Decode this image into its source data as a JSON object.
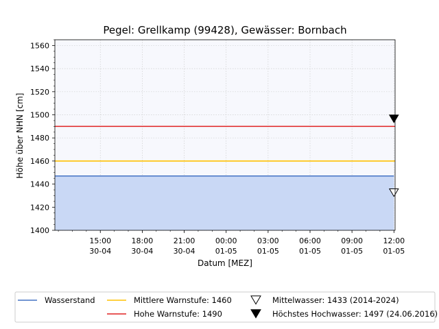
{
  "chart_data": {
    "type": "area",
    "title": "Pegel:  Grellkamp (99428), Gewässer:  Bornbach",
    "xlabel": "Datum [MEZ]",
    "ylabel": "Höhe über NHN [cm]",
    "ylim": [
      1400,
      1565
    ],
    "yticks": [
      1400,
      1420,
      1440,
      1460,
      1480,
      1500,
      1520,
      1540,
      1560
    ],
    "xlim": [
      "2024-04-30 11:45",
      "2024-05-01 12:05"
    ],
    "xticks": [
      {
        "t": "2024-04-30 15:00",
        "time": "15:00",
        "date": "30-04"
      },
      {
        "t": "2024-04-30 18:00",
        "time": "18:00",
        "date": "30-04"
      },
      {
        "t": "2024-04-30 21:00",
        "time": "21:00",
        "date": "30-04"
      },
      {
        "t": "2024-05-01 00:00",
        "time": "00:00",
        "date": "01-05"
      },
      {
        "t": "2024-05-01 03:00",
        "time": "03:00",
        "date": "01-05"
      },
      {
        "t": "2024-05-01 06:00",
        "time": "06:00",
        "date": "01-05"
      },
      {
        "t": "2024-05-01 09:00",
        "time": "09:00",
        "date": "01-05"
      },
      {
        "t": "2024-05-01 12:00",
        "time": "12:00",
        "date": "01-05"
      }
    ],
    "grid": true,
    "legend_placement": "bottom",
    "series": [
      {
        "name": "Wasserstand",
        "color": "#4472c4",
        "fill": "#c9d8f5",
        "x": [
          "2024-04-30 11:45",
          "2024-05-01 12:00"
        ],
        "values": [
          1447,
          1447
        ]
      }
    ],
    "thresholds": [
      {
        "name": "Mittlere Warnstufe: 1460",
        "value": 1460,
        "color": "#ffc000"
      },
      {
        "name": "Hohe Warnstufe: 1490",
        "value": 1490,
        "color": "#e02020"
      }
    ],
    "markers": [
      {
        "name": "Mittelwasser: 1433 (2014-2024)",
        "value": 1433,
        "at": "2024-05-01 12:00",
        "filled": false
      },
      {
        "name": "Höchstes Hochwasser: 1497 (24.06.2016)",
        "value": 1497,
        "at": "2024-05-01 12:00",
        "filled": true
      }
    ],
    "colors": {
      "plot_background": "#f7f8fd",
      "grid": "#cfcfcf"
    }
  }
}
